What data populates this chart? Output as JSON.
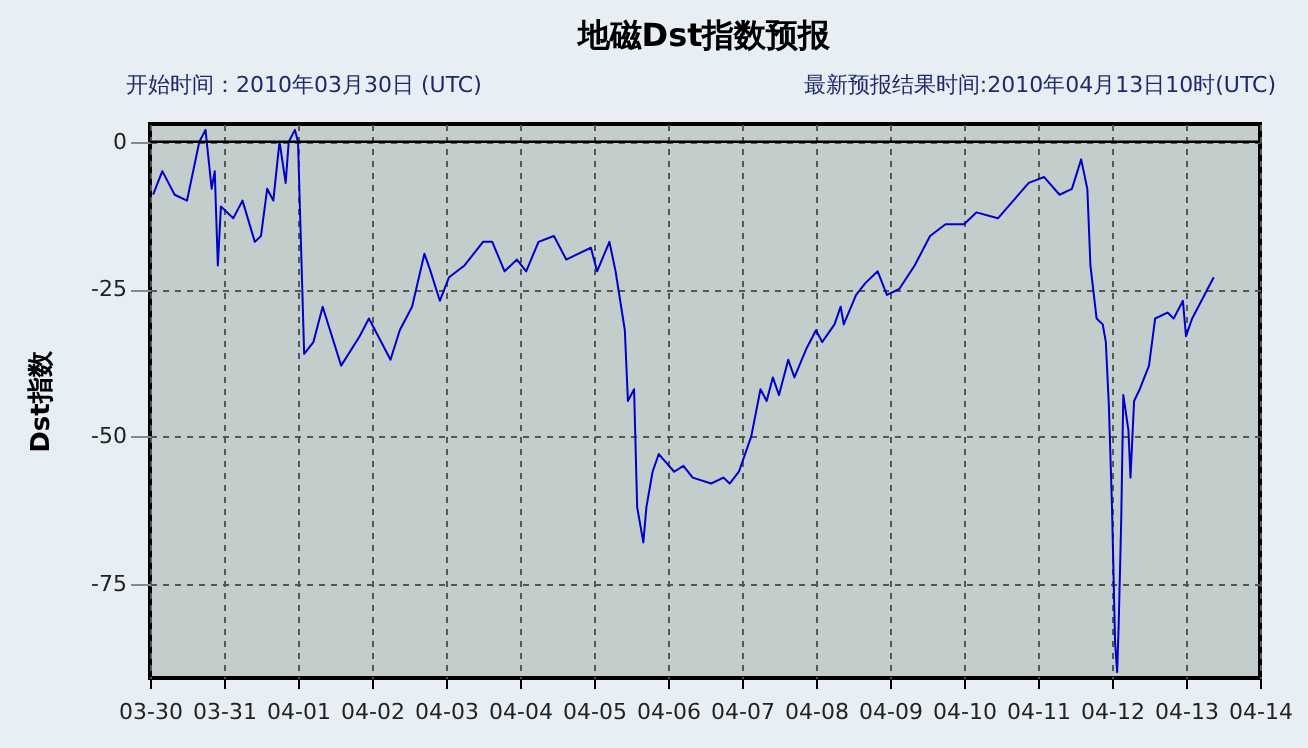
{
  "chart_data": {
    "type": "line",
    "title": "地磁Dst指数预报",
    "ylabel": "Dst指数",
    "annotations": [
      "开始时间：2010年03月30日 (UTC)",
      "最新预报结果时间:2010年04月13日10时(UTC)"
    ],
    "x": [
      "2010-03-30T01:00",
      "2010-03-30T04:00",
      "2010-03-30T08:00",
      "2010-03-30T12:00",
      "2010-03-30T16:00",
      "2010-03-30T18:00",
      "2010-03-30T20:00",
      "2010-03-30T21:00",
      "2010-03-30T22:00",
      "2010-03-30T23:00",
      "2010-03-31T03:00",
      "2010-03-31T06:00",
      "2010-03-31T10:00",
      "2010-03-31T12:00",
      "2010-03-31T14:00",
      "2010-03-31T16:00",
      "2010-03-31T18:00",
      "2010-03-31T20:00",
      "2010-03-31T21:00",
      "2010-03-31T23:00",
      "2010-04-01T00:00",
      "2010-04-01T01:00",
      "2010-04-01T02:00",
      "2010-04-01T05:00",
      "2010-04-01T08:00",
      "2010-04-01T14:00",
      "2010-04-01T20:00",
      "2010-04-01T23:00",
      "2010-04-02T03:00",
      "2010-04-02T06:00",
      "2010-04-02T09:00",
      "2010-04-02T13:00",
      "2010-04-02T17:00",
      "2010-04-02T19:00",
      "2010-04-02T22:00",
      "2010-04-03T01:00",
      "2010-04-03T06:00",
      "2010-04-03T12:00",
      "2010-04-03T15:00",
      "2010-04-03T19:00",
      "2010-04-03T23:00",
      "2010-04-04T02:00",
      "2010-04-04T06:00",
      "2010-04-04T11:00",
      "2010-04-04T15:00",
      "2010-04-04T19:00",
      "2010-04-04T23:00",
      "2010-04-05T01:00",
      "2010-04-05T05:00",
      "2010-04-05T07:00",
      "2010-04-05T10:00",
      "2010-04-05T11:00",
      "2010-04-05T13:00",
      "2010-04-05T14:00",
      "2010-04-05T16:00",
      "2010-04-05T17:00",
      "2010-04-05T19:00",
      "2010-04-05T21:00",
      "2010-04-06T02:00",
      "2010-04-06T05:00",
      "2010-04-06T08:00",
      "2010-04-06T14:00",
      "2010-04-06T18:00",
      "2010-04-06T20:00",
      "2010-04-06T23:00",
      "2010-04-07T03:00",
      "2010-04-07T06:00",
      "2010-04-07T08:00",
      "2010-04-07T10:00",
      "2010-04-07T12:00",
      "2010-04-07T15:00",
      "2010-04-07T17:00",
      "2010-04-07T21:00",
      "2010-04-08T00:00",
      "2010-04-08T02:00",
      "2010-04-08T06:00",
      "2010-04-08T08:00",
      "2010-04-08T09:00",
      "2010-04-08T13:00",
      "2010-04-08T16:00",
      "2010-04-08T20:00",
      "2010-04-08T23:00",
      "2010-04-09T03:00",
      "2010-04-09T08:00",
      "2010-04-09T13:00",
      "2010-04-09T18:00",
      "2010-04-10T00:00",
      "2010-04-10T04:00",
      "2010-04-10T11:00",
      "2010-04-10T16:00",
      "2010-04-10T21:00",
      "2010-04-11T02:00",
      "2010-04-11T07:00",
      "2010-04-11T11:00",
      "2010-04-11T14:00",
      "2010-04-11T16:00",
      "2010-04-11T17:00",
      "2010-04-11T19:00",
      "2010-04-11T21:00",
      "2010-04-11T22:00",
      "2010-04-11T23:00",
      "2010-04-12T00:00",
      "2010-04-12T01:00",
      "2010-04-12T01:40",
      "2010-04-12T02:10",
      "2010-04-12T03:00",
      "2010-04-12T03:40",
      "2010-04-12T05:20",
      "2010-04-12T06:00",
      "2010-04-12T07:10",
      "2010-04-12T09:00",
      "2010-04-12T12:00",
      "2010-04-12T14:00",
      "2010-04-12T18:00",
      "2010-04-12T20:00",
      "2010-04-12T23:00",
      "2010-04-13T00:00",
      "2010-04-13T02:00",
      "2010-04-13T06:00",
      "2010-04-13T07:00",
      "2010-04-13T09:00"
    ],
    "series": [
      {
        "color": "#0000cc",
        "values": [
          -9,
          -5,
          -9,
          -10,
          0,
          2,
          -8,
          -5,
          -21,
          -11,
          -13,
          -10,
          -17,
          -16,
          -8,
          -10,
          0,
          -7,
          0,
          2,
          0,
          -18,
          -36,
          -34,
          -28,
          -38,
          -33,
          -30,
          -34,
          -37,
          -32,
          -28,
          -19,
          -22,
          -27,
          -23,
          -21,
          -17,
          -17,
          -22,
          -20,
          -22,
          -17,
          -16,
          -20,
          -19,
          -18,
          -22,
          -17,
          -22,
          -32,
          -44,
          -42,
          -62,
          -68,
          -62,
          -56,
          -53,
          -56,
          -55,
          -57,
          -58,
          -57,
          -58,
          -56,
          -50,
          -42,
          -44,
          -40,
          -43,
          -37,
          -40,
          -35,
          -32,
          -34,
          -31,
          -28,
          -31,
          -26,
          -24,
          -22,
          -26,
          -25,
          -21,
          -16,
          -14,
          -14,
          -12,
          -13,
          -10,
          -7,
          -6,
          -9,
          -8,
          -3,
          -8,
          -21,
          -30,
          -31,
          -34,
          -45,
          -62,
          -85,
          -90,
          -82,
          -64,
          -43,
          -49,
          -57,
          -44,
          -42,
          -38,
          -30,
          -29,
          -30,
          -27,
          -33,
          -30,
          -26,
          -25,
          -23
        ]
      }
    ],
    "xlim": [
      "2010-03-30",
      "2010-04-14"
    ],
    "xticks": [
      {
        "value": "2010-03-30",
        "label": "03-30"
      },
      {
        "value": "2010-03-31",
        "label": "03-31"
      },
      {
        "value": "2010-04-01",
        "label": "04-01"
      },
      {
        "value": "2010-04-02",
        "label": "04-02"
      },
      {
        "value": "2010-04-03",
        "label": "04-03"
      },
      {
        "value": "2010-04-04",
        "label": "04-04"
      },
      {
        "value": "2010-04-05",
        "label": "04-05"
      },
      {
        "value": "2010-04-06",
        "label": "04-06"
      },
      {
        "value": "2010-04-07",
        "label": "04-07"
      },
      {
        "value": "2010-04-08",
        "label": "04-08"
      },
      {
        "value": "2010-04-09",
        "label": "04-09"
      },
      {
        "value": "2010-04-10",
        "label": "04-10"
      },
      {
        "value": "2010-04-11",
        "label": "04-11"
      },
      {
        "value": "2010-04-12",
        "label": "04-12"
      },
      {
        "value": "2010-04-13",
        "label": "04-13"
      },
      {
        "value": "2010-04-14",
        "label": "04-14"
      }
    ],
    "ylim": [
      -91,
      3
    ],
    "yticks": [
      0,
      -25,
      -50,
      -75
    ],
    "ref_lines": [
      {
        "axis": "y",
        "value": 0,
        "color": "#000000"
      }
    ],
    "grid": true,
    "line_style": "solid"
  }
}
